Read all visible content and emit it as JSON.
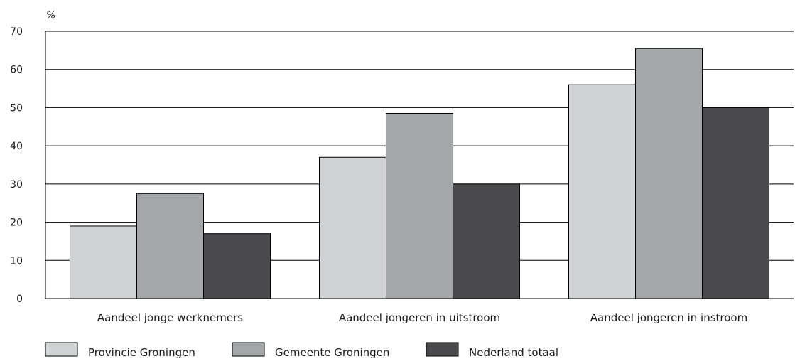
{
  "chart_data": {
    "type": "bar",
    "unit_label": "%",
    "categories": [
      "Aandeel jonge werknemers",
      "Aandeel jongeren in uitstroom",
      "Aandeel jongeren in instroom"
    ],
    "series": [
      {
        "name": "Provincie Groningen",
        "color": "#d1d2d4",
        "values": [
          19,
          37,
          56
        ]
      },
      {
        "name": "Gemeente Groningen",
        "color": "#a5a6a8",
        "values": [
          27.5,
          48.5,
          65.5
        ]
      },
      {
        "name": "Nederland totaal",
        "color": "#4a4a4c",
        "values": [
          17,
          30,
          50
        ]
      }
    ],
    "ylim": [
      0,
      70
    ],
    "yticks": [
      0,
      10,
      20,
      30,
      40,
      50,
      60,
      70
    ],
    "grid": true,
    "legend_position": "bottom-left"
  }
}
